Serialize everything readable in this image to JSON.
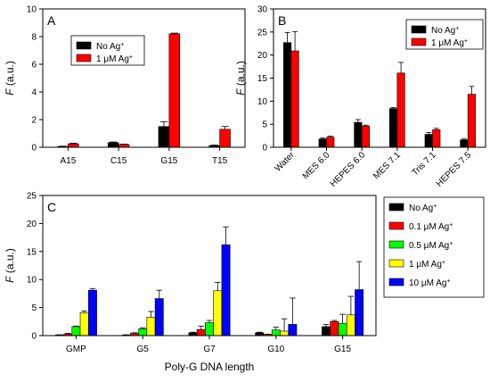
{
  "chart_data": [
    {
      "panel": "A",
      "type": "bar",
      "ylabel": "F (a.u.)",
      "ylim": [
        0,
        10
      ],
      "yticks": [
        0,
        2,
        4,
        6,
        8,
        10
      ],
      "categories": [
        "A15",
        "C15",
        "G15",
        "T15"
      ],
      "legend_position": "top-center",
      "series": [
        {
          "name": "No Ag+",
          "color": "#000000",
          "values": [
            0.05,
            0.33,
            1.5,
            0.12
          ],
          "errors": [
            0.03,
            0.05,
            0.35,
            0.04
          ]
        },
        {
          "name": "1 μM Ag+",
          "color": "#ff0000",
          "values": [
            0.25,
            0.2,
            8.2,
            1.3
          ],
          "errors": [
            0.05,
            0.03,
            0.05,
            0.2
          ]
        }
      ]
    },
    {
      "panel": "B",
      "type": "bar",
      "ylabel": "F (a.u.)",
      "ylim": [
        0,
        30
      ],
      "yticks": [
        0,
        5,
        10,
        15,
        20,
        25,
        30
      ],
      "categories": [
        "Water",
        "MES 6.0",
        "HEPES 6.0",
        "MES 7.1",
        "Tris 7.1",
        "HEPES 7.5"
      ],
      "legend_position": "top-right",
      "series": [
        {
          "name": "No Ag+",
          "color": "#000000",
          "values": [
            22.7,
            1.8,
            5.4,
            8.4,
            2.8,
            1.6
          ],
          "errors": [
            2.2,
            0.2,
            0.6,
            0.2,
            0.4,
            0.2
          ]
        },
        {
          "name": "1 μM Ag+",
          "color": "#ff0000",
          "values": [
            20.9,
            2.2,
            4.6,
            16.1,
            3.8,
            11.5
          ],
          "errors": [
            4.2,
            0.2,
            0.2,
            2.3,
            0.3,
            1.7
          ]
        }
      ]
    },
    {
      "panel": "C",
      "type": "bar",
      "xlabel": "Poly-G DNA length",
      "ylabel": "F (a.u.)",
      "ylim": [
        0,
        25
      ],
      "yticks": [
        0,
        5,
        10,
        15,
        20,
        25
      ],
      "categories": [
        "GMP",
        "G5",
        "G7",
        "G10",
        "G15"
      ],
      "legend_position": "right-outside",
      "series": [
        {
          "name": "No Ag+",
          "color": "#000000",
          "values": [
            0.1,
            0.1,
            0.5,
            0.5,
            1.6
          ],
          "errors": [
            0.05,
            0.05,
            0.1,
            0.1,
            0.4
          ]
        },
        {
          "name": "0.1 μM Ag+",
          "color": "#ff0000",
          "values": [
            0.3,
            0.4,
            1.1,
            0.2,
            2.5
          ],
          "errors": [
            0.1,
            0.1,
            0.6,
            0.05,
            0.2
          ]
        },
        {
          "name": "0.5 μM Ag+",
          "color": "#00ff00",
          "values": [
            1.6,
            1.2,
            2.3,
            1.0,
            2.2
          ],
          "errors": [
            0.1,
            0.2,
            0.4,
            0.5,
            1.6
          ]
        },
        {
          "name": "1 μM Ag+",
          "color": "#ffff00",
          "values": [
            4.1,
            3.3,
            8.0,
            0.8,
            3.7
          ],
          "errors": [
            0.3,
            1.0,
            1.5,
            2.2,
            3.3
          ]
        },
        {
          "name": "10 μM Ag+",
          "color": "#0000ff",
          "values": [
            8.1,
            6.6,
            16.2,
            2.0,
            8.2
          ],
          "errors": [
            0.3,
            1.5,
            3.2,
            4.7,
            5.0
          ]
        }
      ]
    }
  ]
}
